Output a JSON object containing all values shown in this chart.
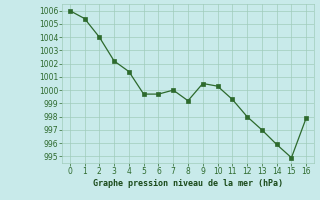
{
  "x": [
    0,
    1,
    2,
    3,
    4,
    5,
    6,
    7,
    8,
    9,
    10,
    11,
    12,
    13,
    14,
    15,
    16
  ],
  "y": [
    1006.0,
    1005.4,
    1004.0,
    1002.2,
    1001.4,
    999.7,
    999.7,
    1000.0,
    999.2,
    1000.5,
    1000.3,
    999.3,
    998.0,
    997.0,
    995.9,
    994.9,
    997.9
  ],
  "line_color": "#2d6a2d",
  "marker_color": "#2d6a2d",
  "bg_color": "#c8eaea",
  "grid_color": "#a0ccbb",
  "xlabel": "Graphe pression niveau de la mer (hPa)",
  "xlabel_color": "#1a4a1a",
  "tick_color": "#2d6a2d",
  "ylim": [
    994.5,
    1006.5
  ],
  "xlim": [
    -0.5,
    16.5
  ],
  "yticks": [
    995,
    996,
    997,
    998,
    999,
    1000,
    1001,
    1002,
    1003,
    1004,
    1005,
    1006
  ],
  "xticks": [
    0,
    1,
    2,
    3,
    4,
    5,
    6,
    7,
    8,
    9,
    10,
    11,
    12,
    13,
    14,
    15,
    16
  ],
  "tick_fontsize": 5.5,
  "xlabel_fontsize": 6.0
}
